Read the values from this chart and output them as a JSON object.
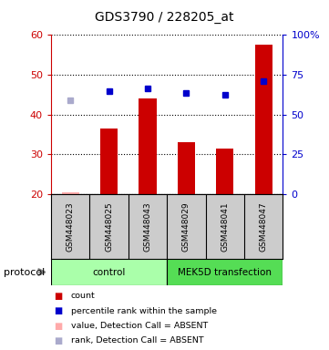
{
  "title": "GDS3790 / 228205_at",
  "samples": [
    "GSM448023",
    "GSM448025",
    "GSM448043",
    "GSM448029",
    "GSM448041",
    "GSM448047"
  ],
  "bar_values": [
    20.5,
    36.5,
    44.0,
    33.0,
    31.5,
    57.5
  ],
  "rank_values": [
    43.5,
    46.0,
    46.5,
    45.5,
    45.0,
    48.5
  ],
  "bar_absent": [
    true,
    false,
    false,
    false,
    false,
    false
  ],
  "rank_absent": [
    true,
    false,
    false,
    false,
    false,
    false
  ],
  "ylim_left": [
    20,
    60
  ],
  "ylim_right": [
    0,
    100
  ],
  "yticks_left": [
    20,
    30,
    40,
    50,
    60
  ],
  "yticks_right": [
    0,
    25,
    50,
    75,
    100
  ],
  "ytick_labels_left": [
    "20",
    "30",
    "40",
    "50",
    "60"
  ],
  "ytick_labels_right": [
    "0",
    "25",
    "50",
    "75",
    "100%"
  ],
  "groups": [
    {
      "label": "control",
      "indices": [
        0,
        1,
        2
      ],
      "color": "#aaffaa"
    },
    {
      "label": "MEK5D transfection",
      "indices": [
        3,
        4,
        5
      ],
      "color": "#55dd55"
    }
  ],
  "protocol_label": "protocol",
  "legend_items": [
    {
      "label": "count",
      "color": "#cc0000"
    },
    {
      "label": "percentile rank within the sample",
      "color": "#0000cc"
    },
    {
      "label": "value, Detection Call = ABSENT",
      "color": "#ffaaaa"
    },
    {
      "label": "rank, Detection Call = ABSENT",
      "color": "#aaaacc"
    }
  ],
  "left_axis_color": "#cc0000",
  "right_axis_color": "#0000cc",
  "bar_color": "#cc0000",
  "absent_bar_color": "#ffaaaa",
  "rank_color": "#0000cc",
  "absent_rank_color": "#aaaacc",
  "box_bg_color": "#cccccc",
  "bar_width": 0.45
}
